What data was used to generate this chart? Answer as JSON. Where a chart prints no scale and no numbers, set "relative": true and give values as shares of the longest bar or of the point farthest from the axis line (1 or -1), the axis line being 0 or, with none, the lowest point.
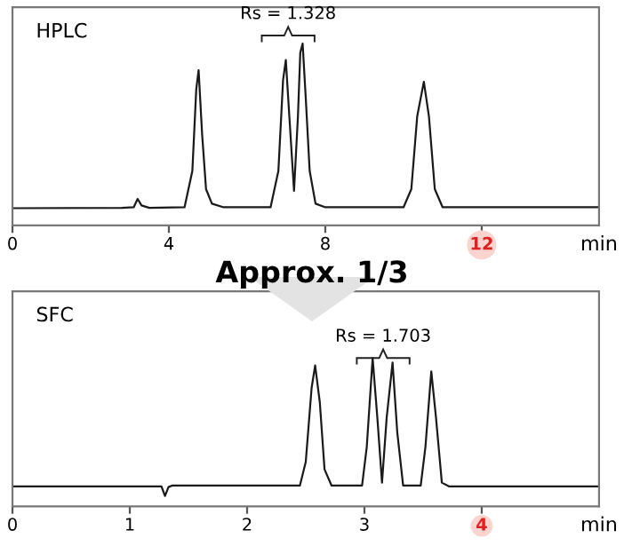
{
  "chart_data": [
    {
      "type": "line",
      "title": "HPLC",
      "xlabel": "min",
      "relative": true,
      "tick_labels": "x",
      "grid": false,
      "legend": false,
      "xlim": [
        0,
        15
      ],
      "xticks": [
        0,
        4,
        8,
        12
      ],
      "series": [
        {
          "color": "#1a1a1a",
          "x": [
            0,
            2.8,
            3.1,
            3.2,
            3.3,
            3.5,
            4.4,
            4.6,
            4.7,
            4.76,
            4.85,
            4.95,
            5.1,
            5.4,
            6.6,
            6.8,
            6.92,
            6.99,
            7.08,
            7.2,
            7.3,
            7.36,
            7.42,
            7.5,
            7.6,
            7.75,
            8.0,
            10.0,
            10.2,
            10.35,
            10.52,
            10.65,
            10.8,
            11.0,
            15
          ],
          "values": [
            0.095,
            0.097,
            0.1,
            0.146,
            0.11,
            0.097,
            0.1,
            0.3,
            0.75,
            0.854,
            0.5,
            0.2,
            0.12,
            0.1,
            0.1,
            0.3,
            0.8,
            0.91,
            0.6,
            0.19,
            0.6,
            0.95,
            1.0,
            0.7,
            0.3,
            0.12,
            0.1,
            0.1,
            0.2,
            0.6,
            0.79,
            0.6,
            0.2,
            0.1,
            0.1
          ]
        }
      ],
      "annotations": [
        "Rs = 1.328"
      ]
    },
    {
      "type": "line",
      "title": "SFC",
      "xlabel": "min",
      "relative": true,
      "tick_labels": "x",
      "grid": false,
      "legend": false,
      "xlim": [
        0,
        5
      ],
      "xticks": [
        0,
        1,
        2,
        3,
        4
      ],
      "series": [
        {
          "color": "#1a1a1a",
          "x": [
            0,
            1.27,
            1.3,
            1.33,
            1.36,
            2.45,
            2.5,
            2.55,
            2.58,
            2.62,
            2.66,
            2.72,
            2.98,
            3.02,
            3.07,
            3.11,
            3.15,
            3.19,
            3.24,
            3.28,
            3.33,
            3.48,
            3.52,
            3.57,
            3.61,
            3.66,
            3.72,
            5
          ],
          "values": [
            0.135,
            0.135,
            0.07,
            0.13,
            0.14,
            0.14,
            0.3,
            0.8,
            0.95,
            0.7,
            0.25,
            0.14,
            0.14,
            0.4,
            1.0,
            0.6,
            0.16,
            0.6,
            0.97,
            0.5,
            0.14,
            0.14,
            0.4,
            0.91,
            0.6,
            0.16,
            0.135,
            0.135
          ]
        }
      ],
      "annotations": [
        "Approx. 1/3",
        "Rs = 1.703"
      ]
    }
  ]
}
